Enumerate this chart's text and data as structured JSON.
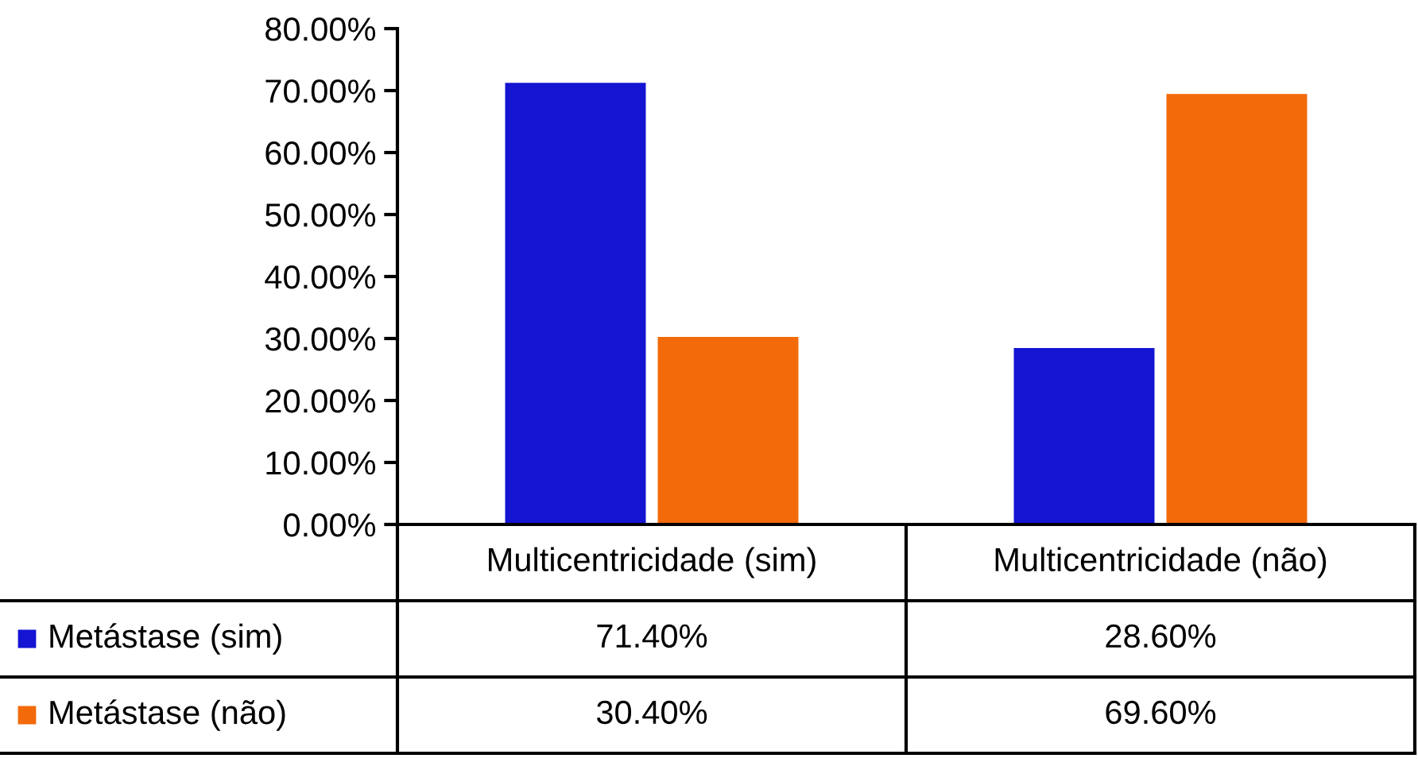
{
  "chart_data": {
    "type": "bar",
    "categories": [
      "Multicentricidade (sim)",
      "Multicentricidade (não)"
    ],
    "series": [
      {
        "name": "Metástase (sim)",
        "color": "#1414d2",
        "values": [
          71.4,
          28.6
        ],
        "value_labels": [
          "71.40%",
          "28.60%"
        ]
      },
      {
        "name": "Metástase (não)",
        "color": "#f26a0a",
        "values": [
          30.4,
          69.6
        ],
        "value_labels": [
          "30.40%",
          "69.60%"
        ]
      }
    ],
    "ylim": [
      0,
      80
    ],
    "yticks": [
      {
        "value": 0,
        "label": "0.00%"
      },
      {
        "value": 10,
        "label": "10.00%"
      },
      {
        "value": 20,
        "label": "20.00%"
      },
      {
        "value": 30,
        "label": "30.00%"
      },
      {
        "value": 40,
        "label": "40.00%"
      },
      {
        "value": 50,
        "label": "50.00%"
      },
      {
        "value": 60,
        "label": "60.00%"
      },
      {
        "value": 70,
        "label": "70.00%"
      },
      {
        "value": 80,
        "label": "80.00%"
      }
    ],
    "grid": false,
    "legend": "bottom"
  }
}
